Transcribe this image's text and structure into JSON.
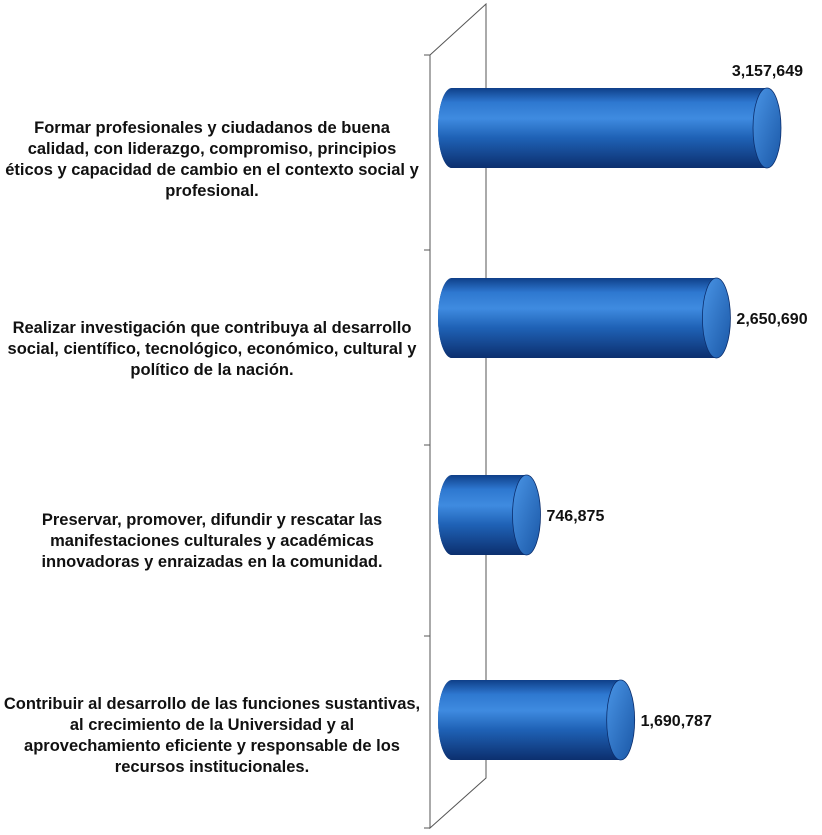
{
  "chart_data": {
    "type": "bar",
    "orientation": "horizontal",
    "style": "3d-cylinder",
    "categories": [
      "Formar profesionales y ciudadanos de buena calidad, con liderazgo, compromiso, principios éticos y capacidad de cambio en el contexto social y profesional.",
      "Realizar investigación que contribuya al desarrollo social, científico, tecnológico, económico, cultural y político de la nación.",
      "Preservar, promover, difundir y rescatar las manifestaciones culturales y académicas innovadoras y enraizadas en la comunidad.",
      "Contribuir al desarrollo de las funciones sustantivas, al crecimiento de la Universidad y al aprovechamiento eficiente y responsable de los recursos institucionales."
    ],
    "values": [
      3157649,
      2650690,
      746875,
      1690787
    ],
    "value_labels": [
      "3,157,649",
      "2,650,690",
      "746,875",
      "1,690,787"
    ],
    "bar_color": "#1f5fb4",
    "grid": false,
    "legend": "none"
  }
}
